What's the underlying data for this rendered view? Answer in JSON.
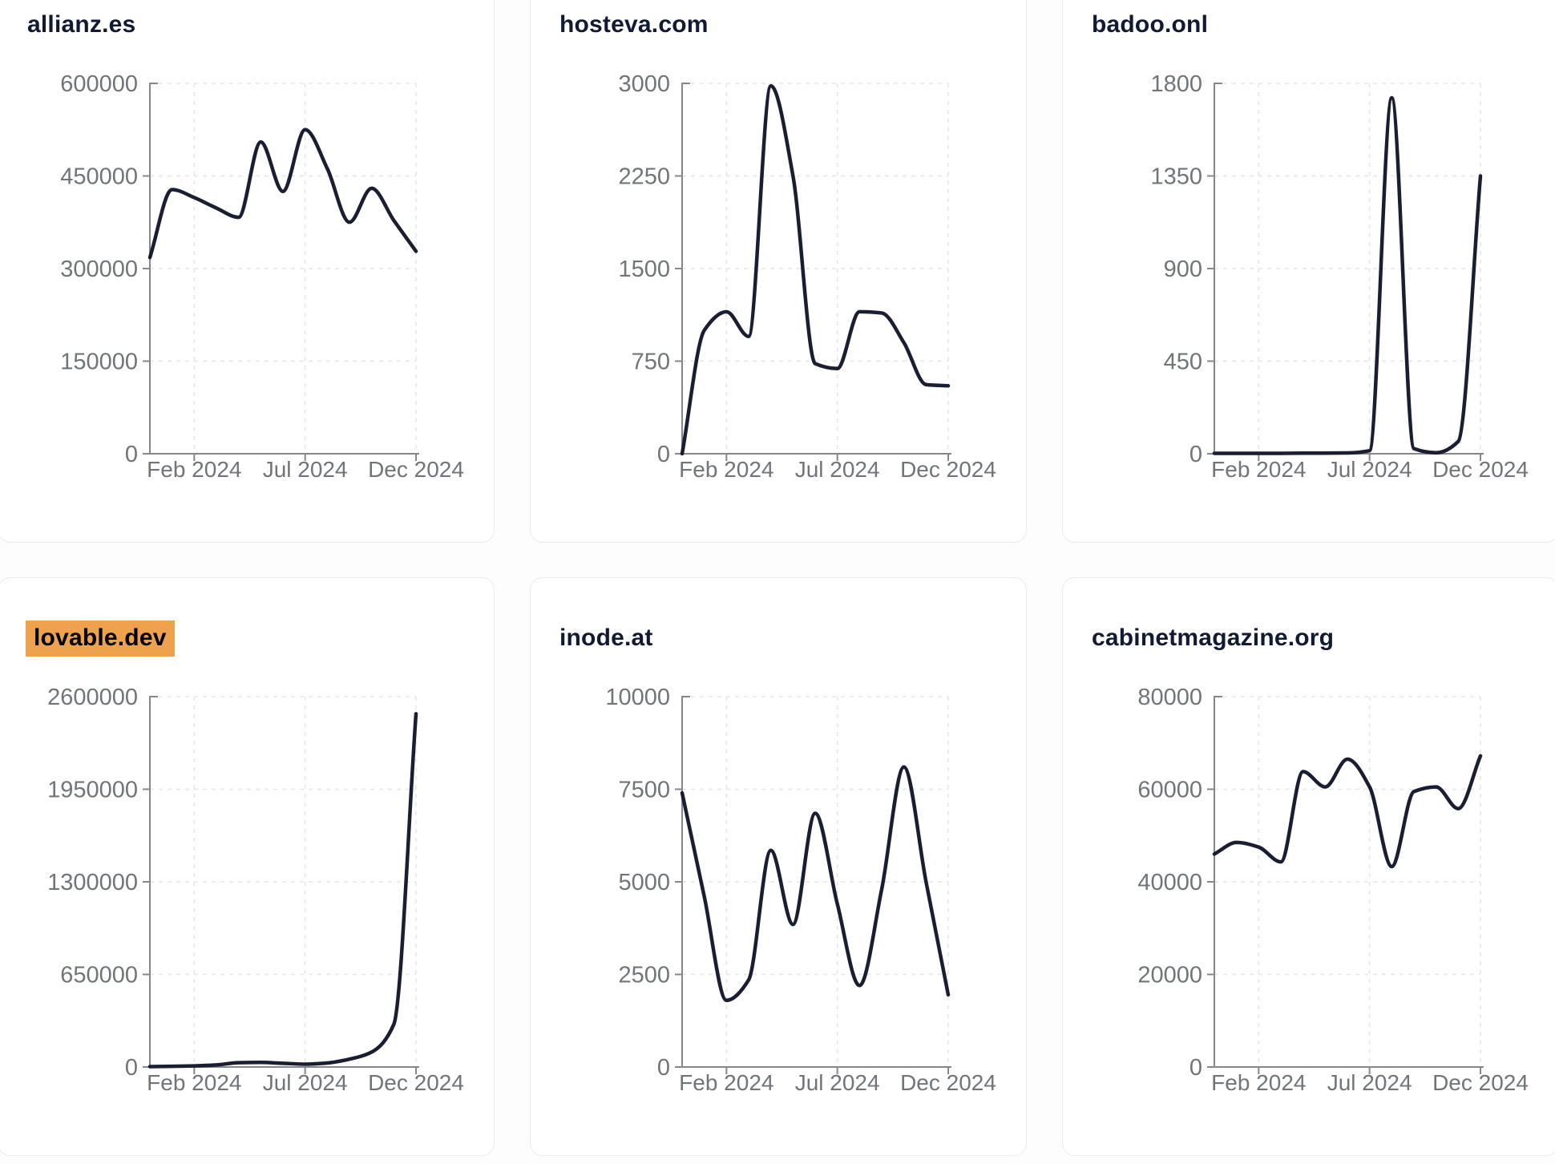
{
  "page": {
    "background": "#fdfdfe",
    "card_background": "#ffffff",
    "card_border_color": "#e9ebee"
  },
  "style": {
    "line_color": "#191e33",
    "title_color": "#101b33",
    "highlight_color": "#efa24d",
    "highlight_text_color": "#000000",
    "tick_text_color": "#717478",
    "axis_color": "#85878a",
    "gridline_color": "#e5e6e9"
  },
  "chart_data": [
    {
      "type": "line",
      "title": "allianz.es",
      "highlighted": false,
      "x": [
        "Dec 2023",
        "Jan 2024",
        "Feb 2024",
        "Mar 2024",
        "Apr 2024",
        "May 2024",
        "Jun 2024",
        "Jul 2024",
        "Aug 2024",
        "Sep 2024",
        "Oct 2024",
        "Nov 2024",
        "Dec 2024"
      ],
      "values": [
        318000,
        428000,
        415000,
        398000,
        383000,
        505000,
        425000,
        525000,
        462000,
        375000,
        430000,
        378000,
        328000
      ],
      "ylim": [
        0,
        600000
      ],
      "y_ticks": [
        0,
        150000,
        300000,
        450000,
        600000
      ],
      "x_tick_labels": [
        {
          "label": "Feb 2024",
          "index": 2
        },
        {
          "label": "Jul 2024",
          "index": 7
        },
        {
          "label": "Dec 2024",
          "index": 12
        }
      ],
      "grid": "dashed",
      "legend": "none"
    },
    {
      "type": "line",
      "title": "hosteva.com",
      "highlighted": false,
      "x": [
        "Dec 2023",
        "Jan 2024",
        "Feb 2024",
        "Mar 2024",
        "Apr 2024",
        "May 2024",
        "Jun 2024",
        "Jul 2024",
        "Aug 2024",
        "Sep 2024",
        "Oct 2024",
        "Nov 2024",
        "Dec 2024"
      ],
      "values": [
        0,
        1000,
        1150,
        950,
        2980,
        2250,
        730,
        690,
        1150,
        1140,
        900,
        560,
        550
      ],
      "ylim": [
        0,
        3000
      ],
      "y_ticks": [
        0,
        750,
        1500,
        2250,
        3000
      ],
      "x_tick_labels": [
        {
          "label": "Feb 2024",
          "index": 2
        },
        {
          "label": "Jul 2024",
          "index": 7
        },
        {
          "label": "Dec 2024",
          "index": 12
        }
      ],
      "grid": "dashed",
      "legend": "none"
    },
    {
      "type": "line",
      "title": "badoo.onl",
      "highlighted": false,
      "x": [
        "Dec 2023",
        "Jan 2024",
        "Feb 2024",
        "Mar 2024",
        "Apr 2024",
        "May 2024",
        "Jun 2024",
        "Jul 2024",
        "Aug 2024",
        "Sep 2024",
        "Oct 2024",
        "Nov 2024",
        "Dec 2024"
      ],
      "values": [
        2,
        2,
        2,
        2,
        3,
        3,
        4,
        15,
        1730,
        25,
        5,
        60,
        1350
      ],
      "ylim": [
        0,
        1800
      ],
      "y_ticks": [
        0,
        450,
        900,
        1350,
        1800
      ],
      "x_tick_labels": [
        {
          "label": "Feb 2024",
          "index": 2
        },
        {
          "label": "Jul 2024",
          "index": 7
        },
        {
          "label": "Dec 2024",
          "index": 12
        }
      ],
      "grid": "dashed",
      "legend": "none"
    },
    {
      "type": "line",
      "title": "lovable.dev",
      "highlighted": true,
      "x": [
        "Dec 2023",
        "Jan 2024",
        "Feb 2024",
        "Mar 2024",
        "Apr 2024",
        "May 2024",
        "Jun 2024",
        "Jul 2024",
        "Aug 2024",
        "Sep 2024",
        "Oct 2024",
        "Nov 2024",
        "Dec 2024"
      ],
      "values": [
        3000,
        5000,
        8000,
        15000,
        30000,
        32000,
        26000,
        20000,
        28000,
        55000,
        105000,
        300000,
        2480000
      ],
      "ylim": [
        0,
        2600000
      ],
      "y_ticks": [
        0,
        650000,
        1300000,
        1950000,
        2600000
      ],
      "x_tick_labels": [
        {
          "label": "Feb 2024",
          "index": 2
        },
        {
          "label": "Jul 2024",
          "index": 7
        },
        {
          "label": "Dec 2024",
          "index": 12
        }
      ],
      "grid": "dashed",
      "legend": "none"
    },
    {
      "type": "line",
      "title": "inode.at",
      "highlighted": false,
      "x": [
        "Dec 2023",
        "Jan 2024",
        "Feb 2024",
        "Mar 2024",
        "Apr 2024",
        "May 2024",
        "Jun 2024",
        "Jul 2024",
        "Aug 2024",
        "Sep 2024",
        "Oct 2024",
        "Nov 2024",
        "Dec 2024"
      ],
      "values": [
        7400,
        4600,
        1800,
        2350,
        5850,
        3850,
        6850,
        4400,
        2200,
        4800,
        8100,
        5000,
        1950
      ],
      "ylim": [
        0,
        10000
      ],
      "y_ticks": [
        0,
        2500,
        5000,
        7500,
        10000
      ],
      "x_tick_labels": [
        {
          "label": "Feb 2024",
          "index": 2
        },
        {
          "label": "Jul 2024",
          "index": 7
        },
        {
          "label": "Dec 2024",
          "index": 12
        }
      ],
      "grid": "dashed",
      "legend": "none"
    },
    {
      "type": "line",
      "title": "cabinetmagazine.org",
      "highlighted": false,
      "x": [
        "Dec 2023",
        "Jan 2024",
        "Feb 2024",
        "Mar 2024",
        "Apr 2024",
        "May 2024",
        "Jun 2024",
        "Jul 2024",
        "Aug 2024",
        "Sep 2024",
        "Oct 2024",
        "Nov 2024",
        "Dec 2024"
      ],
      "values": [
        46000,
        48500,
        47500,
        44300,
        63800,
        60500,
        66500,
        60500,
        43300,
        59500,
        60500,
        55800,
        67200
      ],
      "ylim": [
        0,
        80000
      ],
      "y_ticks": [
        0,
        20000,
        40000,
        60000,
        80000
      ],
      "x_tick_labels": [
        {
          "label": "Feb 2024",
          "index": 2
        },
        {
          "label": "Jul 2024",
          "index": 7
        },
        {
          "label": "Dec 2024",
          "index": 12
        }
      ],
      "grid": "dashed",
      "legend": "none"
    }
  ]
}
